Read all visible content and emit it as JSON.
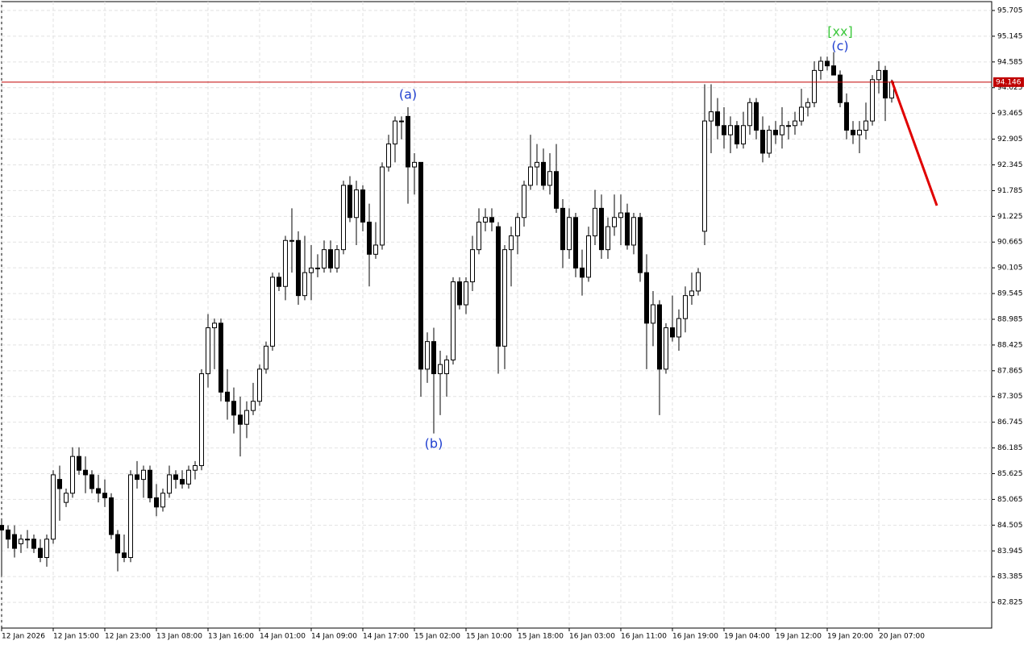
{
  "chart_data": {
    "type": "candlestick",
    "ohlc": [
      [
        84.5,
        84.6,
        83.4,
        84.4
      ],
      [
        84.4,
        84.5,
        84.0,
        84.2
      ],
      [
        84.3,
        84.5,
        83.8,
        84.0
      ],
      [
        84.1,
        84.3,
        83.9,
        84.2
      ],
      [
        84.2,
        84.4,
        84.0,
        84.2
      ],
      [
        84.2,
        84.3,
        83.9,
        84.0
      ],
      [
        84.0,
        84.2,
        83.7,
        83.8
      ],
      [
        83.8,
        84.3,
        83.6,
        84.2
      ],
      [
        84.2,
        85.7,
        84.1,
        85.6
      ],
      [
        85.5,
        85.8,
        84.6,
        85.3
      ],
      [
        85.0,
        85.3,
        84.9,
        85.2
      ],
      [
        85.2,
        86.2,
        85.1,
        86.0
      ],
      [
        86.0,
        86.2,
        85.6,
        85.7
      ],
      [
        85.7,
        86.0,
        85.2,
        85.6
      ],
      [
        85.6,
        85.7,
        85.2,
        85.3
      ],
      [
        85.3,
        85.6,
        85.0,
        85.2
      ],
      [
        85.2,
        85.5,
        84.9,
        85.1
      ],
      [
        85.1,
        85.2,
        84.2,
        84.3
      ],
      [
        84.3,
        84.4,
        83.5,
        83.9
      ],
      [
        83.9,
        84.3,
        83.7,
        83.8
      ],
      [
        83.8,
        85.7,
        83.7,
        85.6
      ],
      [
        85.6,
        85.9,
        85.3,
        85.5
      ],
      [
        85.5,
        85.8,
        85.1,
        85.7
      ],
      [
        85.7,
        85.8,
        85.0,
        85.1
      ],
      [
        85.1,
        85.4,
        84.7,
        84.9
      ],
      [
        84.9,
        85.3,
        84.8,
        85.2
      ],
      [
        85.2,
        85.8,
        85.1,
        85.6
      ],
      [
        85.6,
        85.7,
        85.3,
        85.5
      ],
      [
        85.5,
        85.7,
        85.3,
        85.4
      ],
      [
        85.4,
        85.8,
        85.3,
        85.7
      ],
      [
        85.7,
        85.9,
        85.5,
        85.8
      ],
      [
        85.8,
        87.9,
        85.7,
        87.8
      ],
      [
        87.8,
        89.1,
        87.5,
        88.8
      ],
      [
        88.8,
        89.0,
        87.9,
        88.9
      ],
      [
        88.9,
        89.0,
        87.2,
        87.4
      ],
      [
        87.4,
        87.9,
        86.8,
        87.2
      ],
      [
        87.2,
        87.5,
        86.5,
        86.9
      ],
      [
        86.9,
        87.3,
        86.0,
        86.7
      ],
      [
        86.7,
        87.2,
        86.4,
        87.0
      ],
      [
        87.0,
        87.6,
        86.9,
        87.2
      ],
      [
        87.2,
        88.0,
        87.1,
        87.9
      ],
      [
        87.9,
        88.5,
        87.8,
        88.4
      ],
      [
        88.4,
        90.0,
        88.3,
        89.9
      ],
      [
        89.9,
        90.0,
        89.6,
        89.7
      ],
      [
        89.7,
        90.8,
        89.4,
        90.7
      ],
      [
        90.7,
        91.4,
        90.0,
        90.7
      ],
      [
        90.7,
        90.9,
        89.3,
        89.5
      ],
      [
        89.5,
        90.8,
        89.4,
        90.0
      ],
      [
        90.0,
        90.6,
        89.4,
        90.1
      ],
      [
        90.1,
        90.4,
        89.9,
        90.1
      ],
      [
        90.1,
        90.7,
        90.0,
        90.5
      ],
      [
        90.5,
        90.7,
        90.0,
        90.1
      ],
      [
        90.1,
        90.6,
        90.0,
        90.5
      ],
      [
        90.5,
        92.0,
        90.4,
        91.9
      ],
      [
        91.9,
        92.1,
        91.1,
        91.2
      ],
      [
        91.2,
        92.0,
        90.6,
        91.8
      ],
      [
        91.8,
        91.9,
        90.9,
        91.1
      ],
      [
        91.1,
        91.5,
        89.7,
        90.4
      ],
      [
        90.4,
        91.1,
        90.3,
        90.6
      ],
      [
        90.6,
        92.4,
        90.5,
        92.3
      ],
      [
        92.3,
        93.0,
        92.2,
        92.8
      ],
      [
        92.8,
        93.4,
        92.4,
        93.3
      ],
      [
        93.3,
        93.4,
        92.9,
        93.3
      ],
      [
        93.4,
        93.6,
        91.5,
        92.3
      ],
      [
        92.3,
        92.6,
        91.7,
        92.4
      ],
      [
        92.4,
        92.4,
        87.3,
        87.9
      ],
      [
        87.9,
        88.7,
        87.6,
        88.5
      ],
      [
        88.5,
        88.8,
        86.5,
        87.8
      ],
      [
        87.8,
        88.3,
        86.9,
        88.0
      ],
      [
        87.8,
        88.2,
        87.3,
        88.1
      ],
      [
        88.1,
        89.9,
        88.0,
        89.8
      ],
      [
        89.8,
        89.9,
        89.2,
        89.3
      ],
      [
        89.3,
        89.9,
        89.1,
        89.8
      ],
      [
        89.8,
        90.8,
        89.6,
        90.5
      ],
      [
        90.5,
        91.4,
        90.4,
        91.1
      ],
      [
        91.1,
        91.4,
        90.9,
        91.2
      ],
      [
        91.2,
        91.4,
        90.9,
        91.1
      ],
      [
        91.0,
        91.1,
        87.8,
        88.4
      ],
      [
        88.4,
        90.6,
        87.9,
        90.5
      ],
      [
        90.5,
        91.0,
        89.7,
        90.8
      ],
      [
        90.8,
        91.3,
        90.4,
        91.2
      ],
      [
        91.2,
        92.0,
        91.0,
        91.9
      ],
      [
        91.9,
        93.0,
        91.8,
        92.3
      ],
      [
        92.3,
        92.8,
        91.9,
        92.4
      ],
      [
        92.4,
        92.7,
        91.8,
        91.9
      ],
      [
        91.9,
        92.6,
        91.7,
        92.2
      ],
      [
        92.2,
        92.8,
        91.3,
        91.4
      ],
      [
        91.4,
        91.6,
        90.1,
        90.5
      ],
      [
        90.5,
        91.4,
        90.3,
        91.2
      ],
      [
        91.2,
        91.3,
        89.9,
        90.1
      ],
      [
        90.1,
        90.5,
        89.5,
        89.9
      ],
      [
        89.9,
        91.0,
        89.8,
        90.8
      ],
      [
        90.8,
        91.8,
        90.6,
        91.4
      ],
      [
        91.4,
        91.7,
        90.3,
        90.5
      ],
      [
        90.5,
        91.2,
        90.3,
        91.0
      ],
      [
        91.0,
        91.7,
        90.8,
        91.2
      ],
      [
        91.2,
        91.7,
        90.6,
        91.3
      ],
      [
        91.3,
        91.5,
        90.5,
        90.6
      ],
      [
        90.6,
        91.3,
        90.4,
        91.2
      ],
      [
        91.2,
        91.3,
        89.8,
        90.0
      ],
      [
        90.0,
        90.4,
        87.9,
        88.9
      ],
      [
        88.9,
        89.6,
        88.4,
        89.3
      ],
      [
        89.3,
        89.4,
        86.9,
        87.9
      ],
      [
        87.9,
        88.9,
        87.8,
        88.8
      ],
      [
        88.8,
        89.5,
        88.5,
        88.6
      ],
      [
        88.6,
        89.2,
        88.3,
        89.0
      ],
      [
        89.0,
        89.7,
        88.7,
        89.5
      ],
      [
        89.5,
        90.0,
        89.3,
        89.6
      ],
      [
        89.6,
        90.1,
        89.5,
        90.0
      ],
      [
        90.9,
        94.1,
        90.6,
        93.3
      ],
      [
        93.3,
        94.1,
        92.6,
        93.5
      ],
      [
        93.5,
        93.8,
        92.9,
        93.2
      ],
      [
        93.2,
        93.6,
        92.7,
        93.0
      ],
      [
        93.0,
        93.4,
        92.6,
        93.2
      ],
      [
        93.2,
        93.3,
        92.7,
        92.8
      ],
      [
        92.8,
        93.5,
        92.7,
        93.2
      ],
      [
        93.2,
        93.8,
        93.0,
        93.7
      ],
      [
        93.7,
        93.8,
        92.9,
        93.1
      ],
      [
        93.1,
        93.4,
        92.4,
        92.6
      ],
      [
        92.6,
        93.2,
        92.5,
        93.1
      ],
      [
        93.1,
        93.3,
        92.8,
        93.0
      ],
      [
        93.0,
        93.6,
        92.7,
        93.2
      ],
      [
        93.2,
        93.3,
        92.9,
        93.2
      ],
      [
        93.2,
        93.5,
        93.0,
        93.3
      ],
      [
        93.3,
        94.0,
        93.2,
        93.6
      ],
      [
        93.6,
        93.8,
        93.4,
        93.7
      ],
      [
        93.7,
        94.6,
        93.6,
        94.4
      ],
      [
        94.4,
        94.7,
        94.2,
        94.6
      ],
      [
        94.6,
        94.7,
        94.4,
        94.5
      ],
      [
        94.5,
        94.8,
        94.3,
        94.3
      ],
      [
        94.3,
        94.4,
        93.6,
        93.7
      ],
      [
        93.7,
        93.9,
        92.9,
        93.1
      ],
      [
        93.1,
        93.3,
        92.8,
        93.0
      ],
      [
        93.0,
        93.3,
        92.6,
        93.1
      ],
      [
        93.1,
        93.7,
        92.9,
        93.3
      ],
      [
        93.3,
        94.3,
        93.2,
        94.2
      ],
      [
        94.2,
        94.6,
        93.9,
        94.4
      ],
      [
        94.4,
        94.5,
        93.3,
        93.8
      ],
      [
        93.8,
        94.2,
        93.7,
        94.146
      ]
    ],
    "current_price": 94.146,
    "annotations": [
      "(a)",
      "(b)",
      "(c)",
      "[xx]"
    ],
    "ylim": [
      82.265,
      95.898
    ],
    "yticks": [
      95.705,
      95.145,
      94.585,
      94.025,
      93.465,
      92.905,
      92.345,
      91.785,
      91.225,
      90.665,
      90.105,
      89.545,
      88.985,
      88.425,
      87.865,
      87.305,
      86.745,
      86.185,
      85.625,
      85.065,
      84.505,
      83.945,
      83.385,
      82.825
    ],
    "xticks": [
      {
        "value": 0,
        "label": "12 Jan 2026"
      },
      {
        "value": 8,
        "label": "12 Jan 15:00"
      },
      {
        "value": 16,
        "label": "12 Jan 23:00"
      },
      {
        "value": 24,
        "label": "13 Jan 08:00"
      },
      {
        "value": 32,
        "label": "13 Jan 16:00"
      },
      {
        "value": 40,
        "label": "14 Jan 01:00"
      },
      {
        "value": 48,
        "label": "14 Jan 09:00"
      },
      {
        "value": 56,
        "label": "14 Jan 17:00"
      },
      {
        "value": 64,
        "label": "15 Jan 02:00"
      },
      {
        "value": 72,
        "label": "15 Jan 10:00"
      },
      {
        "value": 80,
        "label": "15 Jan 18:00"
      },
      {
        "value": 88,
        "label": "16 Jan 03:00"
      },
      {
        "value": 96,
        "label": "16 Jan 11:00"
      },
      {
        "value": 104,
        "label": "16 Jan 19:00"
      },
      {
        "value": 112,
        "label": "19 Jan 04:00"
      },
      {
        "value": 120,
        "label": "19 Jan 12:00"
      },
      {
        "value": 128,
        "label": "19 Jan 20:00"
      },
      {
        "value": 136,
        "label": "20 Jan 07:00"
      }
    ],
    "grid": true
  }
}
